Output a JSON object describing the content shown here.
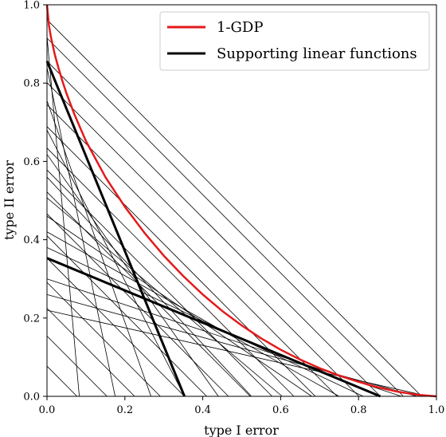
{
  "chart_data": {
    "type": "line",
    "title": "",
    "xlabel": "type I error",
    "ylabel": "type II error",
    "xlim": [
      0,
      1
    ],
    "ylim": [
      0,
      1
    ],
    "xticks": [
      "0.0",
      "0.2",
      "0.4",
      "0.6",
      "0.8",
      "1.0"
    ],
    "yticks": [
      "0.0",
      "0.2",
      "0.4",
      "0.6",
      "0.8",
      "1.0"
    ],
    "grid": false,
    "legend_position": "top-right",
    "curve": {
      "name": "1-GDP",
      "color": "#e31a1c",
      "x": [
        0.0,
        0.005,
        0.01,
        0.02,
        0.03,
        0.04,
        0.05,
        0.07,
        0.1,
        0.15,
        0.2,
        0.25,
        0.3,
        0.35,
        0.4,
        0.45,
        0.5,
        0.55,
        0.6,
        0.65,
        0.7,
        0.75,
        0.8,
        0.85,
        0.9,
        0.95,
        1.0
      ],
      "y": [
        1.0,
        0.948,
        0.918,
        0.873,
        0.837,
        0.804,
        0.774,
        0.721,
        0.652,
        0.56,
        0.484,
        0.418,
        0.359,
        0.307,
        0.26,
        0.218,
        0.181,
        0.148,
        0.119,
        0.094,
        0.072,
        0.053,
        0.037,
        0.023,
        0.012,
        0.004,
        0.0
      ]
    },
    "supporting_lines": {
      "name": "Supporting linear functions",
      "color": "#000000",
      "lines": [
        {
          "x0": 0.0,
          "y0": 0.077,
          "x1": 0.077,
          "y1": 0.0
        },
        {
          "x0": 0.0,
          "y0": 0.154,
          "x1": 0.154,
          "y1": 0.0
        },
        {
          "x0": 0.0,
          "y0": 0.225,
          "x1": 0.225,
          "y1": 0.0
        },
        {
          "x0": 0.0,
          "y0": 0.291,
          "x1": 0.291,
          "y1": 0.0
        },
        {
          "x0": 0.0,
          "y0": 0.353,
          "x1": 0.353,
          "y1": 0.0
        },
        {
          "x0": 0.0,
          "y0": 0.41,
          "x1": 0.41,
          "y1": 0.0
        },
        {
          "x0": 0.0,
          "y0": 0.466,
          "x1": 0.466,
          "y1": 0.0
        },
        {
          "x0": 0.0,
          "y0": 0.522,
          "x1": 0.522,
          "y1": 0.0
        },
        {
          "x0": 0.0,
          "y0": 0.578,
          "x1": 0.578,
          "y1": 0.0
        },
        {
          "x0": 0.0,
          "y0": 0.634,
          "x1": 0.634,
          "y1": 0.0
        },
        {
          "x0": 0.0,
          "y0": 0.689,
          "x1": 0.689,
          "y1": 0.0
        },
        {
          "x0": 0.0,
          "y0": 0.745,
          "x1": 0.745,
          "y1": 0.0
        },
        {
          "x0": 0.0,
          "y0": 0.801,
          "x1": 0.801,
          "y1": 0.0
        },
        {
          "x0": 0.0,
          "y0": 0.856,
          "x1": 0.856,
          "y1": 0.0
        },
        {
          "x0": 0.0,
          "y0": 0.915,
          "x1": 0.915,
          "y1": 0.0
        },
        {
          "x0": 0.0,
          "y0": 0.962,
          "x1": 0.962,
          "y1": 0.0
        },
        {
          "x0": 0.0,
          "y0": 0.92,
          "x1": 0.083,
          "y1": 0.0
        },
        {
          "x0": 0.0,
          "y0": 0.84,
          "x1": 0.175,
          "y1": 0.0
        },
        {
          "x0": 0.0,
          "y0": 0.755,
          "x1": 0.267,
          "y1": 0.0
        },
        {
          "x0": 0.0,
          "y0": 0.68,
          "x1": 0.353,
          "y1": 0.0
        },
        {
          "x0": 0.0,
          "y0": 0.618,
          "x1": 0.44,
          "y1": 0.0
        },
        {
          "x0": 0.0,
          "y0": 0.56,
          "x1": 0.525,
          "y1": 0.0
        },
        {
          "x0": 0.0,
          "y0": 0.507,
          "x1": 0.604,
          "y1": 0.0
        },
        {
          "x0": 0.0,
          "y0": 0.46,
          "x1": 0.68,
          "y1": 0.0
        },
        {
          "x0": 0.0,
          "y0": 0.42,
          "x1": 0.75,
          "y1": 0.0
        },
        {
          "x0": 0.0,
          "y0": 0.38,
          "x1": 0.812,
          "y1": 0.0
        },
        {
          "x0": 0.0,
          "y0": 0.353,
          "x1": 0.856,
          "y1": 0.0
        },
        {
          "x0": 0.0,
          "y0": 0.3,
          "x1": 0.91,
          "y1": 0.0
        },
        {
          "x0": 0.0,
          "y0": 0.26,
          "x1": 0.95,
          "y1": 0.0
        },
        {
          "x0": 0.0,
          "y0": 0.22,
          "x1": 0.98,
          "y1": 0.0
        }
      ],
      "bold": [
        {
          "x0": 0.0,
          "y0": 0.856,
          "x1": 0.353,
          "y1": 0.0
        },
        {
          "x0": 0.0,
          "y0": 0.353,
          "x1": 0.856,
          "y1": 0.0
        }
      ]
    },
    "legend": [
      {
        "label": "1-GDP",
        "color": "#e31a1c"
      },
      {
        "label": "Supporting linear functions",
        "color": "#000000"
      }
    ]
  }
}
